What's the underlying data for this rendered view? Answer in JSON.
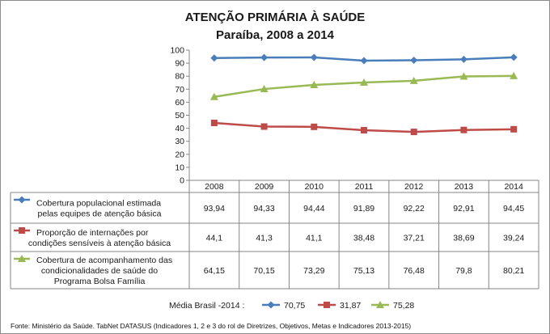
{
  "chart_data": {
    "type": "line",
    "title": "ATENÇÃO PRIMÁRIA À SAÚDE",
    "subtitle": "Paraíba, 2008 a 2014",
    "categories": [
      "2008",
      "2009",
      "2010",
      "2011",
      "2012",
      "2013",
      "2014"
    ],
    "ylim": [
      0,
      100
    ],
    "yticks": [
      0,
      10,
      20,
      30,
      40,
      50,
      60,
      70,
      80,
      90,
      100
    ],
    "grid": false,
    "series": [
      {
        "name_lines": [
          "Cobertura  populacional estimada",
          "pelas equipes de atenção básica"
        ],
        "color": "#4a7ebb",
        "marker": "diamond",
        "values": [
          93.94,
          94.33,
          94.44,
          91.89,
          92.22,
          92.91,
          94.45
        ],
        "labels": [
          "93,94",
          "94,33",
          "94,44",
          "91,89",
          "92,22",
          "92,91",
          "94,45"
        ]
      },
      {
        "name_lines": [
          "Proporção de internações por",
          "condições sensíveis  à atenção básica"
        ],
        "color": "#be4b48",
        "marker": "square",
        "values": [
          44.1,
          41.3,
          41.1,
          38.48,
          37.21,
          38.69,
          39.24
        ],
        "labels": [
          "44,1",
          "41,3",
          "41,1",
          "38,48",
          "37,21",
          "38,69",
          "39,24"
        ]
      },
      {
        "name_lines": [
          "Cobertura de acompanhamento das",
          "condicionalidades de saúde do",
          "Programa Bolsa Família"
        ],
        "color": "#98b954",
        "marker": "triangle",
        "values": [
          64.15,
          70.15,
          73.29,
          75.13,
          76.48,
          79.8,
          80.21
        ],
        "labels": [
          "64,15",
          "70,15",
          "73,29",
          "75,13",
          "76,48",
          "79,8",
          "80,21"
        ]
      }
    ],
    "brazil_mean": {
      "label": "Média Brasil -2014 :",
      "values": [
        "70,75",
        "31,87",
        "75,28"
      ]
    }
  },
  "source": "Fonte: Ministério da Saúde. TabNet DATASUS (Indicadores 1, 2 e 3 do rol de Diretrizes, Objetivos, Metas e Indicadores 2013-2015)"
}
